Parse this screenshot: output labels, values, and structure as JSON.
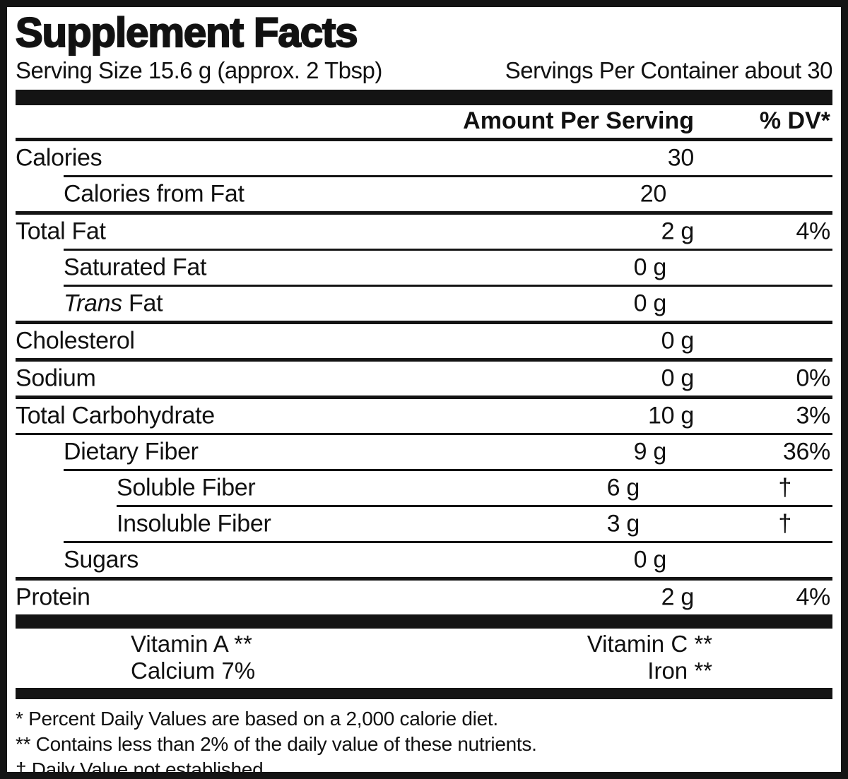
{
  "title": "Supplement Facts",
  "serving": {
    "size": "Serving Size 15.6 g (approx. 2 Tbsp)",
    "per_container": "Servings Per Container about 30"
  },
  "header": {
    "amount": "Amount Per Serving",
    "dv": "% DV*"
  },
  "rows": [
    {
      "label": "Calories",
      "amount": "30",
      "dv": ""
    },
    {
      "label": "Calories from Fat",
      "amount": "20",
      "dv": ""
    },
    {
      "label": "Total Fat",
      "amount": "2 g",
      "dv": "4%"
    },
    {
      "label": "Saturated Fat",
      "amount": "0 g",
      "dv": ""
    },
    {
      "label_italic": "Trans",
      "label": " Fat",
      "amount": "0 g",
      "dv": ""
    },
    {
      "label": "Cholesterol",
      "amount": "0 g",
      "dv": ""
    },
    {
      "label": "Sodium",
      "amount": "0 g",
      "dv": "0%"
    },
    {
      "label": "Total Carbohydrate",
      "amount": "10 g",
      "dv": "3%"
    },
    {
      "label": "Dietary Fiber",
      "amount": "9 g",
      "dv": "36%"
    },
    {
      "label": "Soluble Fiber",
      "amount": "6 g",
      "dv": "†"
    },
    {
      "label": "Insoluble Fiber",
      "amount": "3 g",
      "dv": "†"
    },
    {
      "label": "Sugars",
      "amount": "0 g",
      "dv": ""
    },
    {
      "label": "Protein",
      "amount": "2 g",
      "dv": "4%"
    }
  ],
  "vitamins": [
    {
      "left": "Vitamin A **",
      "right": "Vitamin C **"
    },
    {
      "left": "Calcium 7%",
      "right": "Iron **"
    }
  ],
  "footnotes": [
    "* Percent Daily Values are based on a 2,000 calorie diet.",
    "** Contains less than 2% of the daily value of these nutrients.",
    "† Daily Value not established."
  ],
  "colors": {
    "ink": "#141414",
    "background": "#ffffff"
  }
}
